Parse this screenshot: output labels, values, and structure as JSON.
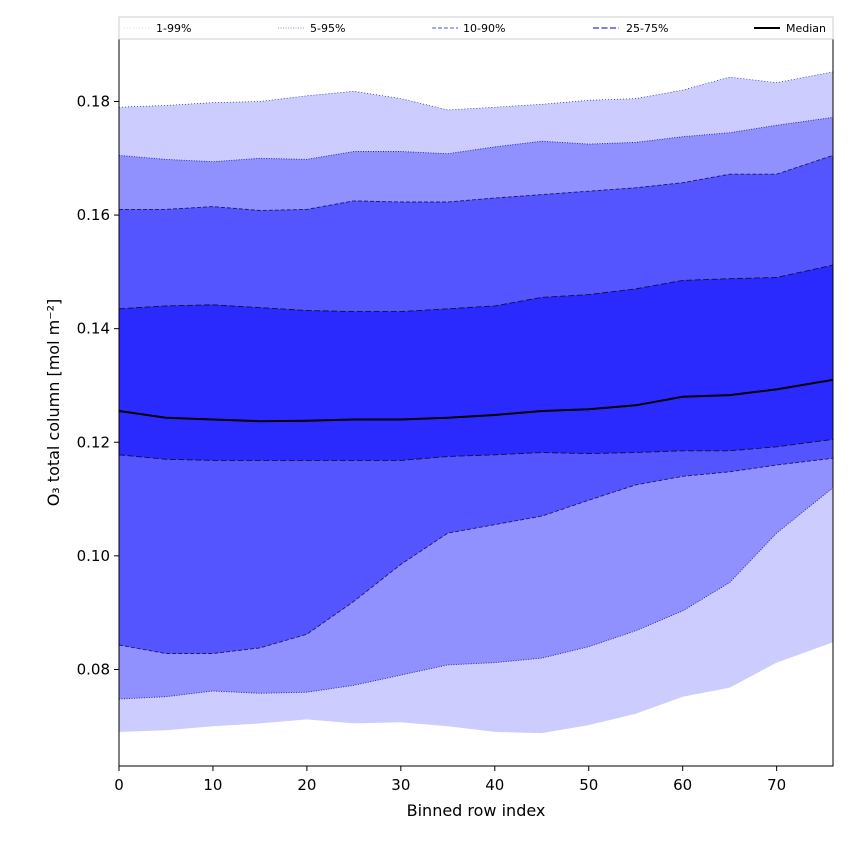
{
  "chart_data": {
    "type": "area",
    "title": "",
    "xlabel": "Binned row index",
    "ylabel": "O₃ total column [mol m⁻²]",
    "xlim": [
      0,
      76
    ],
    "ylim": [
      0.063,
      0.191
    ],
    "xticks": [
      0,
      10,
      20,
      30,
      40,
      50,
      60,
      70
    ],
    "yticks": [
      0.08,
      0.1,
      0.12,
      0.14,
      0.16,
      0.18
    ],
    "ytick_labels": [
      "0.08",
      "0.10",
      "0.12",
      "0.14",
      "0.16",
      "0.18"
    ],
    "grid": false,
    "legend_position": "top",
    "x": [
      0,
      5,
      10,
      15,
      20,
      25,
      30,
      35,
      40,
      45,
      50,
      55,
      60,
      65,
      70,
      76
    ],
    "bands": [
      {
        "name": "1-99%",
        "color": "#ccccff",
        "line_color": "#bbbbcc",
        "dash": "1,2",
        "upper": [
          0.179,
          0.1793,
          0.1798,
          0.18,
          0.181,
          0.1818,
          0.1805,
          0.1785,
          0.179,
          0.1795,
          0.1802,
          0.1805,
          0.182,
          0.1843,
          0.1833,
          0.1852
        ],
        "lower": [
          0.069,
          0.0693,
          0.07,
          0.0705,
          0.0712,
          0.0705,
          0.0707,
          0.07,
          0.069,
          0.0688,
          0.0702,
          0.0722,
          0.0752,
          0.0768,
          0.0812,
          0.0848
        ]
      },
      {
        "name": "5-95%",
        "color": "#9090ff",
        "line_color": "#2222aa",
        "dash": "1,1.5",
        "upper": [
          0.1705,
          0.1698,
          0.1694,
          0.17,
          0.1698,
          0.1712,
          0.1712,
          0.1708,
          0.172,
          0.173,
          0.1725,
          0.1728,
          0.1738,
          0.1745,
          0.1758,
          0.1772
        ],
        "lower": [
          0.0748,
          0.0752,
          0.0762,
          0.0758,
          0.076,
          0.0772,
          0.079,
          0.0808,
          0.0812,
          0.082,
          0.084,
          0.0868,
          0.0903,
          0.0953,
          0.104,
          0.112
        ]
      },
      {
        "name": "10-90%",
        "color": "#5555ff",
        "line_color": "#1a1a66",
        "dash": "4,2",
        "upper": [
          0.161,
          0.161,
          0.1615,
          0.1608,
          0.161,
          0.1625,
          0.1623,
          0.1623,
          0.163,
          0.1636,
          0.1642,
          0.1648,
          0.1657,
          0.1672,
          0.1672,
          0.1705
        ],
        "lower": [
          0.0843,
          0.0828,
          0.0828,
          0.0838,
          0.0862,
          0.092,
          0.0985,
          0.104,
          0.1055,
          0.107,
          0.1098,
          0.1125,
          0.114,
          0.1148,
          0.116,
          0.1172
        ]
      },
      {
        "name": "25-75%",
        "color": "#2a2aff",
        "line_color": "#111133",
        "dash": "6,2.5",
        "upper": [
          0.1435,
          0.144,
          0.1442,
          0.1437,
          0.1432,
          0.143,
          0.143,
          0.1435,
          0.144,
          0.1455,
          0.146,
          0.147,
          0.1485,
          0.1488,
          0.149,
          0.1512
        ],
        "lower": [
          0.1178,
          0.117,
          0.1168,
          0.1168,
          0.1168,
          0.1168,
          0.1168,
          0.1175,
          0.1178,
          0.1182,
          0.118,
          0.1182,
          0.1185,
          0.1185,
          0.1192,
          0.1205
        ]
      }
    ],
    "series": [
      {
        "name": "Median",
        "color": "#000000",
        "values": [
          0.1255,
          0.1243,
          0.124,
          0.1237,
          0.1238,
          0.124,
          0.124,
          0.1243,
          0.1248,
          0.1255,
          0.1258,
          0.1265,
          0.128,
          0.1283,
          0.1293,
          0.131
        ]
      }
    ],
    "legend": [
      "1-99%",
      "5-95%",
      "10-90%",
      "25-75%",
      "Median"
    ]
  }
}
